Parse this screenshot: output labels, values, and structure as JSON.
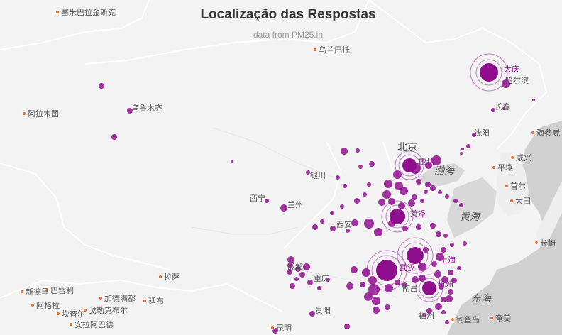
{
  "title": "Localização das Respostas",
  "subtitle": "data from PM25.in",
  "colors": {
    "land": "#f3f3f3",
    "sea": "#cfcfcf",
    "border": "#ffffff",
    "label": "#555555",
    "city_marker": "#e8732f",
    "point": "#8e0e8e",
    "ring": "#8e0e8e"
  },
  "city_labels": [
    {
      "name": "塞米巴拉金斯克"
    },
    {
      "name": "乌兰巴托"
    },
    {
      "name": "阿拉木图"
    },
    {
      "name": "乌鲁木齐"
    },
    {
      "name": "哈尔滨"
    },
    {
      "name": "长春"
    },
    {
      "name": "沈阳"
    },
    {
      "name": "海参崴"
    },
    {
      "name": "北京"
    },
    {
      "name": "廊坊"
    },
    {
      "name": "渤海"
    },
    {
      "name": "咸兴"
    },
    {
      "name": "平壤"
    },
    {
      "name": "首尔"
    },
    {
      "name": "大田"
    },
    {
      "name": "银川"
    },
    {
      "name": "西宁"
    },
    {
      "name": "兰州"
    },
    {
      "name": "菏泽"
    },
    {
      "name": "黄海"
    },
    {
      "name": "西安"
    },
    {
      "name": "长崎"
    },
    {
      "name": "拉萨"
    },
    {
      "name": "成都"
    },
    {
      "name": "重庆"
    },
    {
      "name": "武汉"
    },
    {
      "name": "上海"
    },
    {
      "name": "杭州"
    },
    {
      "name": "南昌"
    },
    {
      "name": "东海"
    },
    {
      "name": "新德里"
    },
    {
      "name": "巴雷利"
    },
    {
      "name": "加德满都"
    },
    {
      "name": "阿格拉"
    },
    {
      "name": "坎普尔"
    },
    {
      "name": "戈勒克布尔"
    },
    {
      "name": "廷布"
    },
    {
      "name": "安拉阿巴德"
    },
    {
      "name": "贵阳"
    },
    {
      "name": "福州"
    },
    {
      "name": "昆明"
    },
    {
      "name": "钓鱼岛"
    },
    {
      "name": "奄美"
    },
    {
      "name": "大庆"
    }
  ],
  "highlighted_cities": [
    "大庆",
    "廊坊",
    "菏泽",
    "武汉",
    "上海",
    "杭州"
  ]
}
